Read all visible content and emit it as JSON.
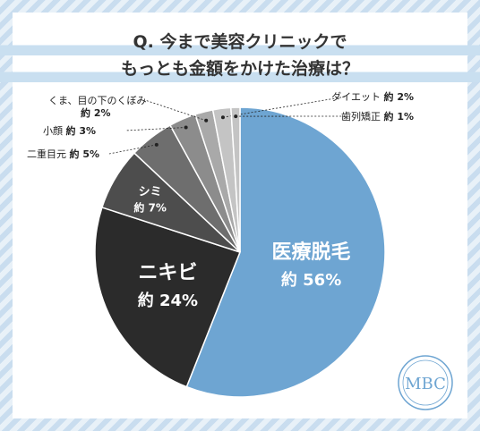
{
  "title_lines": [
    "Q. 今まで美容クリニックで",
    "もっとも金額をかけた治療は？"
  ],
  "logo_text": "MBC",
  "colors": {
    "accent_blue": "#6ea5d2",
    "slices": [
      "#6ea5d2",
      "#2b2b2b",
      "#4d4d4d",
      "#6e6e6e",
      "#8c8c8c",
      "#a9a9a9",
      "#c4c4c4"
    ]
  },
  "chart_data": {
    "type": "pie",
    "title": "Q. 今まで美容クリニックで もっとも金額をかけた治療は？",
    "start_angle_deg": -90,
    "direction": "clockwise",
    "slices": [
      {
        "label": "医療脱毛",
        "value": 56,
        "value_text": "約 56%",
        "label_position": "inside"
      },
      {
        "label": "ニキビ",
        "value": 24,
        "value_text": "約 24%",
        "label_position": "inside"
      },
      {
        "label": "シミ",
        "value": 7,
        "value_text": "約 7%",
        "label_position": "inside"
      },
      {
        "label": "二重目元",
        "value": 5,
        "value_text": "約 5%",
        "label_position": "outside-left"
      },
      {
        "label": "小顔",
        "value": 3,
        "value_text": "約 3%",
        "label_position": "outside-left"
      },
      {
        "label": "くま、目の下のくぼみ",
        "value": 2,
        "value_text": "約 2%",
        "label_position": "outside-left"
      },
      {
        "label": "ダイエット",
        "value": 2,
        "value_text": "約 2%",
        "label_position": "outside-right"
      },
      {
        "label": "歯列矯正",
        "value": 1,
        "value_text": "約 1%",
        "label_position": "outside-right"
      }
    ]
  }
}
